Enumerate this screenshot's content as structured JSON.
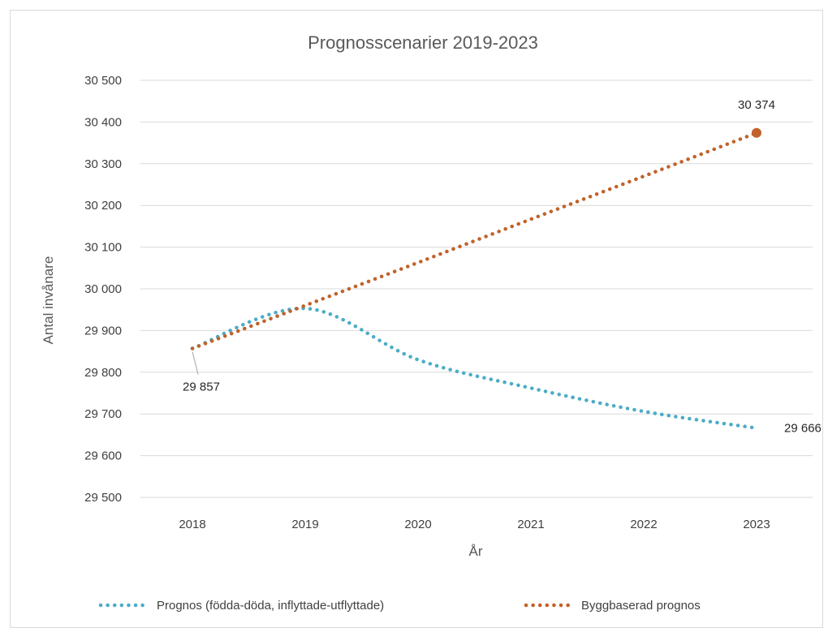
{
  "chart_data": {
    "type": "line",
    "title": "Prognosscenarier 2019-2023",
    "xlabel": "År",
    "ylabel": "Antal invånare",
    "x": [
      2018,
      2019,
      2020,
      2021,
      2022,
      2023
    ],
    "x_tick_labels": [
      "2018",
      "2019",
      "2020",
      "2021",
      "2022",
      "2023"
    ],
    "ylim": [
      29500,
      30500
    ],
    "y_ticks": [
      29500,
      29600,
      29700,
      29800,
      29900,
      30000,
      30100,
      30200,
      30300,
      30400,
      30500
    ],
    "y_tick_labels": [
      "29 500",
      "29 600",
      "29 700",
      "29 800",
      "29 900",
      "30 000",
      "30 100",
      "30 200",
      "30 300",
      "30 400",
      "30 500"
    ],
    "grid": true,
    "legend_position": "bottom",
    "series": [
      {
        "name": "Prognos (födda-döda, inflyttade-utflyttade)",
        "color": "#4BACC6",
        "style": "dotted",
        "values": [
          29857,
          29953,
          29830,
          29762,
          29706,
          29666
        ]
      },
      {
        "name": "Byggbaserad prognos",
        "color": "#C0622A",
        "style": "dotted",
        "values": [
          29857,
          29960,
          30063,
          30167,
          30270,
          30374
        ],
        "end_marker": true
      }
    ],
    "data_labels": [
      {
        "text": "29 857",
        "series": 0,
        "index": 0,
        "anchor": "below"
      },
      {
        "text": "30 374",
        "series": 1,
        "index": 5,
        "anchor": "above"
      },
      {
        "text": "29 666",
        "series": 0,
        "index": 5,
        "anchor": "right"
      }
    ]
  }
}
